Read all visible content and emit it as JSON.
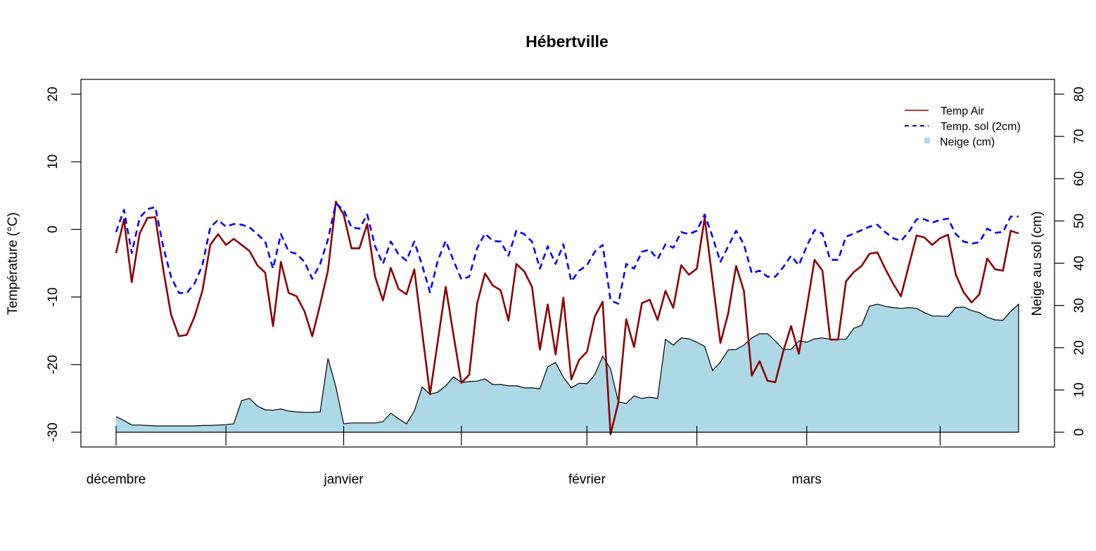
{
  "chart_data": {
    "type": "line",
    "title": "Hébertville",
    "ylabel": "Température (°C)",
    "y2label": "Neige au sol (cm)",
    "xlabel": "",
    "ylim": [
      -30,
      20
    ],
    "y2lim": [
      0,
      80
    ],
    "yticks": [
      -30,
      -20,
      -10,
      0,
      10,
      20
    ],
    "y2ticks": [
      0,
      10,
      20,
      30,
      40,
      50,
      60,
      70,
      80
    ],
    "x_tick_indices": [
      0,
      14,
      29,
      44,
      60,
      74,
      88,
      105
    ],
    "x_labels": [
      {
        "index": 0,
        "label": "décembre"
      },
      {
        "index": 29,
        "label": "janvier"
      },
      {
        "index": 60,
        "label": "février"
      },
      {
        "index": 88,
        "label": "mars"
      }
    ],
    "legend_position": "top-right",
    "series": [
      {
        "name": "Temp Air",
        "axis": "left",
        "style": "solid",
        "color": "#8b0000",
        "values": [
          -3.5,
          1.5,
          -7.8,
          -0.6,
          1.7,
          1.8,
          -5.8,
          -12.6,
          -15.8,
          -15.6,
          -12.9,
          -9.1,
          -2.3,
          -0.7,
          -2.3,
          -1.4,
          -2.3,
          -3.2,
          -5.3,
          -6.4,
          -14.3,
          -4.8,
          -9.4,
          -9.9,
          -12.1,
          -15.8,
          -11.1,
          -6.1,
          4.1,
          2.2,
          -2.8,
          -2.8,
          0.8,
          -7.0,
          -10.5,
          -5.7,
          -8.8,
          -9.6,
          -5.9,
          -15.2,
          -24.4,
          -16.5,
          -8.5,
          -15.6,
          -22.7,
          -21.5,
          -11.0,
          -6.5,
          -8.3,
          -9.0,
          -13.5,
          -5.1,
          -6.2,
          -8.5,
          -17.8,
          -11.1,
          -18.5,
          -10.1,
          -22.2,
          -19.3,
          -18.1,
          -12.9,
          -10.7,
          -30.3,
          -25.6,
          -13.3,
          -17.4,
          -10.9,
          -10.4,
          -13.4,
          -9.1,
          -11.6,
          -5.3,
          -6.7,
          -5.8,
          1.7,
          -7.5,
          -16.8,
          -12.4,
          -5.4,
          -9.1,
          -21.6,
          -19.5,
          -22.4,
          -22.6,
          -18.1,
          -14.3,
          -18.4,
          -11.6,
          -4.5,
          -6.1,
          -16.3,
          -16.3,
          -7.7,
          -6.3,
          -5.4,
          -3.6,
          -3.4,
          -5.8,
          -8.0,
          -9.9,
          -5.4,
          -0.9,
          -1.2,
          -2.3,
          -1.3,
          -0.8,
          -6.7,
          -9.3,
          -10.8,
          -9.6,
          -4.3,
          -5.9,
          -6.1,
          -0.2,
          -0.6
        ]
      },
      {
        "name": "Temp. sol (2cm)",
        "axis": "left",
        "style": "dashed",
        "color": "#0000ff",
        "values": [
          -0.4,
          2.9,
          -3.5,
          1.7,
          3.0,
          3.3,
          -2.5,
          -7.0,
          -9.4,
          -9.4,
          -8.0,
          -5.3,
          0.3,
          1.4,
          0.4,
          0.8,
          0.7,
          0.3,
          -0.7,
          -1.8,
          -5.8,
          -0.7,
          -3.3,
          -3.6,
          -4.8,
          -7.3,
          -5.1,
          -1.5,
          3.8,
          2.9,
          0.3,
          0.1,
          2.2,
          -2.5,
          -5.1,
          -1.8,
          -3.7,
          -4.6,
          -1.8,
          -5.3,
          -9.3,
          -4.6,
          -1.7,
          -4.6,
          -7.4,
          -7.0,
          -2.8,
          -0.6,
          -1.7,
          -1.8,
          -3.9,
          -0.2,
          -0.7,
          -1.8,
          -5.8,
          -2.5,
          -5.1,
          -2.2,
          -7.7,
          -6.1,
          -5.3,
          -3.3,
          -2.3,
          -10.5,
          -11.0,
          -5.1,
          -5.8,
          -3.3,
          -3.0,
          -4.4,
          -2.2,
          -2.7,
          -0.4,
          -0.7,
          -0.2,
          2.2,
          -1.1,
          -4.8,
          -2.5,
          -0.2,
          -2.2,
          -6.5,
          -6.1,
          -7.0,
          -7.0,
          -5.6,
          -3.9,
          -5.3,
          -2.5,
          -0.1,
          -0.6,
          -4.5,
          -4.5,
          -1.1,
          -0.6,
          -0.1,
          0.4,
          0.7,
          -0.4,
          -1.3,
          -1.7,
          -0.4,
          1.5,
          1.5,
          1.0,
          1.4,
          1.6,
          -0.7,
          -1.8,
          -2.1,
          -1.9,
          0.1,
          -0.5,
          -0.4,
          1.9,
          1.9
        ]
      },
      {
        "name": "Neige (cm)",
        "axis": "right",
        "style": "area",
        "color": "#add8e6",
        "values": [
          3.7,
          2.8,
          1.7,
          1.7,
          1.6,
          1.5,
          1.5,
          1.5,
          1.5,
          1.5,
          1.5,
          1.6,
          1.6,
          1.7,
          1.8,
          2.0,
          7.5,
          8.0,
          6.2,
          5.3,
          5.2,
          5.5,
          5.0,
          4.8,
          4.7,
          4.7,
          4.8,
          17.5,
          10.8,
          2.0,
          2.2,
          2.2,
          2.2,
          2.2,
          2.5,
          4.5,
          3.2,
          2.0,
          5.0,
          10.7,
          9.0,
          9.5,
          11.0,
          13.1,
          11.8,
          12.0,
          12.1,
          12.6,
          11.3,
          11.3,
          11.0,
          11.0,
          10.5,
          10.5,
          10.3,
          15.5,
          16.5,
          13.0,
          10.5,
          11.6,
          11.5,
          13.6,
          18.0,
          15.0,
          7.2,
          6.8,
          8.6,
          8.0,
          8.3,
          8.0,
          22.0,
          20.6,
          22.3,
          22.1,
          21.3,
          20.3,
          14.6,
          16.6,
          19.5,
          19.6,
          20.6,
          22.3,
          23.3,
          23.3,
          21.6,
          19.6,
          19.6,
          21.6,
          21.3,
          22.1,
          22.3,
          22.0,
          22.0,
          22.0,
          24.6,
          25.3,
          29.8,
          30.3,
          29.8,
          29.5,
          29.3,
          29.5,
          29.3,
          28.3,
          27.5,
          27.5,
          27.4,
          29.5,
          29.6,
          28.8,
          28.3,
          27.2,
          26.6,
          26.5,
          28.6,
          30.3
        ]
      }
    ]
  }
}
